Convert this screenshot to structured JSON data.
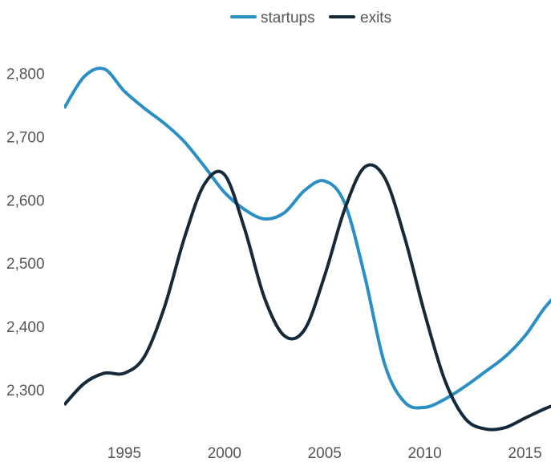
{
  "chart_data": {
    "type": "line",
    "title": "",
    "xlabel": "",
    "ylabel": "",
    "x": [
      1992,
      1993,
      1994,
      1995,
      1996,
      1997,
      1998,
      1999,
      2000,
      2001,
      2002,
      2003,
      2004,
      2005,
      2006,
      2007,
      2008,
      2009,
      2010,
      2011,
      2012,
      2013,
      2014,
      2015,
      2016,
      2017
    ],
    "series": [
      {
        "name": "startups",
        "color": "#2a8fc4",
        "values": [
          2745,
          2795,
          2807,
          2772,
          2745,
          2721,
          2692,
          2653,
          2612,
          2585,
          2570,
          2580,
          2615,
          2630,
          2595,
          2480,
          2340,
          2280,
          2272,
          2285,
          2305,
          2328,
          2352,
          2385,
          2430,
          2465
        ]
      },
      {
        "name": "exits",
        "color": "#14293a",
        "values": [
          2276,
          2310,
          2326,
          2326,
          2352,
          2430,
          2540,
          2625,
          2640,
          2555,
          2445,
          2385,
          2395,
          2480,
          2585,
          2652,
          2635,
          2540,
          2420,
          2315,
          2255,
          2238,
          2240,
          2255,
          2270,
          2282
        ]
      }
    ],
    "x_ticks": [
      "1995",
      "2000",
      "2005",
      "2010",
      "2015"
    ],
    "y_ticks": [
      "2,300",
      "2,400",
      "2,500",
      "2,600",
      "2,700",
      "2,800"
    ],
    "x_tick_values": [
      1995,
      2000,
      2005,
      2010,
      2015
    ],
    "y_tick_values": [
      2300,
      2400,
      2500,
      2600,
      2700,
      2800
    ],
    "xlim": [
      1992,
      2016.3
    ],
    "ylim": [
      2225,
      2840
    ],
    "grid": false,
    "legend_position": "top-center"
  }
}
